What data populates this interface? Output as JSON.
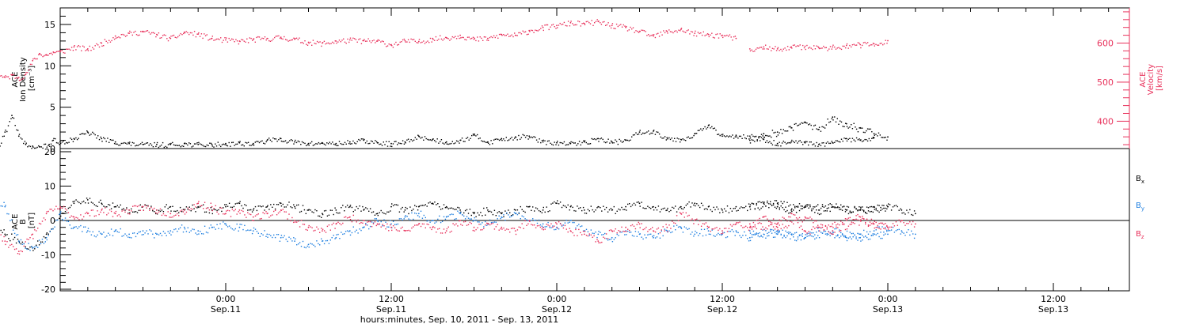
{
  "chart_data": [
    {
      "type": "scatter",
      "panel": "top",
      "ylabel_lines": [
        "ACE",
        "Ion Density",
        "[cm⁻³]"
      ],
      "y2label_lines": [
        "ACE",
        "Velocity",
        "[km/s]"
      ],
      "ylim": [
        0,
        17
      ],
      "yticks": [
        "0",
        "5",
        "10",
        "15"
      ],
      "y2lim": [
        330,
        690
      ],
      "y2ticks": [
        "400",
        "500",
        "600"
      ],
      "xlim_hours": [
        -27,
        51
      ],
      "colors": {
        "density": "#000000",
        "velocity": "#e8315b"
      },
      "series": [
        {
          "name": "",
          "axis": "left",
          "color_key": "density",
          "x": [
            -27,
            -26.5,
            -26,
            -25.5,
            -25,
            -24.7,
            -24.5,
            -24,
            -23.5,
            -23,
            -22.5,
            -22,
            -21.5,
            -21,
            -20.5,
            -20,
            -19.5,
            -19,
            -18.5,
            -18,
            -17.5,
            -17,
            -16.5,
            -16,
            -15.5,
            -15,
            -14.5,
            -14,
            -13.5,
            -12.8,
            -12.5,
            -12,
            -11,
            -10,
            -9,
            -8,
            -7,
            -6,
            -5,
            -4,
            -3,
            -2,
            -1,
            0,
            1,
            2,
            3,
            4,
            5,
            6,
            7,
            8,
            9,
            10,
            11,
            12,
            13,
            14,
            15,
            16,
            17,
            18,
            19,
            20,
            21,
            22,
            23,
            24,
            25,
            26,
            27,
            28,
            29,
            30,
            31,
            32,
            33,
            34,
            35,
            36,
            37,
            38,
            39,
            40,
            41,
            42,
            43,
            44,
            45,
            46,
            47
          ],
          "y": [
            0.5,
            0.5,
            0.4,
            0.5,
            1.5,
            10.5,
            15.5,
            3.5,
            2.0,
            2.3,
            2.6,
            2.4,
            2.0,
            3.5,
            5.0,
            5.5,
            6.5,
            7.2,
            6.0,
            4.5,
            3.0,
            1.5,
            0.2,
            2.0,
            4.0,
            1.5,
            0.5,
            0.3,
            0.2,
            0.5,
            1.0,
            0.8,
            1.2,
            2.0,
            1.2,
            0.8,
            0.6,
            0.5,
            0.5,
            0.5,
            0.6,
            0.5,
            0.5,
            0.6,
            0.7,
            0.6,
            1.0,
            1.2,
            0.8,
            0.6,
            0.7,
            0.6,
            0.8,
            1.0,
            0.7,
            0.6,
            0.8,
            1.5,
            1.1,
            0.8,
            1.0,
            1.6,
            0.8,
            1.2,
            1.4,
            1.5,
            0.8,
            0.7,
            0.6,
            0.8,
            1.2,
            0.8,
            1.0,
            2.0,
            2.1,
            1.3,
            1.1,
            1.8,
            2.8,
            1.5,
            1.6,
            1.5,
            1.1,
            0.6,
            0.8,
            0.7,
            0.5,
            0.7,
            1.2,
            1.0,
            1.3
          ]
        },
        {
          "name": "",
          "axis": "left",
          "color_key": "density",
          "x": [
            38,
            39,
            40,
            41,
            42,
            43,
            44,
            45,
            46,
            47,
            48
          ],
          "y": [
            1.0,
            1.8,
            2.0,
            2.5,
            3.2,
            2.3,
            3.8,
            3.0,
            2.5,
            1.8,
            1.4
          ]
        },
        {
          "name": "",
          "axis": "right",
          "color_key": "velocity",
          "x": [
            -27,
            -26,
            -25.5,
            -25,
            -24.5,
            -24,
            -23.5,
            -23,
            -22.5,
            -22,
            -21.5,
            -21,
            -20.5,
            -20,
            -19.5,
            -19,
            -18.5,
            -18,
            -17.5,
            -17,
            -16.5,
            -16,
            -15.5,
            -15,
            -14.5,
            -14,
            -13.5,
            -13,
            -12.5,
            -12,
            -11,
            -10,
            -9,
            -8,
            -7,
            -6,
            -5,
            -4,
            -3,
            -2,
            -1,
            0,
            1,
            2,
            3,
            4,
            5,
            6,
            7,
            8,
            9,
            10,
            11,
            12,
            13,
            14,
            15,
            16,
            17,
            18,
            19,
            20,
            21,
            22,
            23,
            24,
            25,
            26,
            27,
            28,
            29,
            30,
            31,
            32,
            33,
            34,
            35,
            36,
            37
          ],
          "y": [
            482,
            483,
            488,
            496,
            505,
            502,
            498,
            500,
            502,
            498,
            496,
            505,
            512,
            520,
            530,
            540,
            538,
            530,
            522,
            525,
            518,
            512,
            518,
            512,
            520,
            555,
            573,
            570,
            577,
            578,
            590,
            585,
            600,
            618,
            625,
            630,
            622,
            612,
            628,
            623,
            612,
            608,
            605,
            610,
            612,
            615,
            610,
            602,
            600,
            605,
            608,
            606,
            605,
            596,
            606,
            604,
            612,
            614,
            620,
            610,
            612,
            622,
            620,
            632,
            640,
            645,
            652,
            650,
            655,
            645,
            640,
            630,
            618,
            630,
            635,
            625,
            622,
            620,
            612
          ]
        },
        {
          "name": "",
          "axis": "right",
          "color_key": "velocity",
          "x": [
            38,
            39,
            40,
            41,
            42,
            43,
            44,
            45,
            46,
            47,
            48
          ],
          "y": [
            585,
            590,
            585,
            590,
            592,
            588,
            590,
            594,
            596,
            598,
            606
          ]
        }
      ]
    },
    {
      "type": "scatter",
      "panel": "bottom",
      "ylabel_lines": [
        "ACE",
        "B",
        "[nT]"
      ],
      "ylim": [
        -20,
        20
      ],
      "yticks": [
        "-20",
        "-10",
        "0",
        "10",
        "20"
      ],
      "xlim_hours": [
        -27,
        51
      ],
      "xticks": [
        {
          "hours": 0,
          "time": "0:00",
          "date": "Sep.11"
        },
        {
          "hours": 12,
          "time": "12:00",
          "date": "Sep.11"
        },
        {
          "hours": 24,
          "time": "0:00",
          "date": "Sep.12"
        },
        {
          "hours": 36,
          "time": "12:00",
          "date": "Sep.12"
        },
        {
          "hours": 48,
          "time": "0:00",
          "date": "Sep.13"
        },
        {
          "hours": 60,
          "time": "12:00",
          "date": "Sep.13"
        }
      ],
      "xlabel": "hours:minutes, Sep. 10, 2011 - Sep. 13, 2011",
      "legend": [
        {
          "label": "B",
          "sub": "x",
          "color": "#000000"
        },
        {
          "label": "B",
          "sub": "y",
          "color": "#1f7fe0"
        },
        {
          "label": "B",
          "sub": "z",
          "color": "#e8315b"
        }
      ],
      "series": [
        {
          "name": "Bx",
          "color_key": "bx",
          "x": [
            -27,
            -26,
            -25,
            -24.5,
            -24,
            -23,
            -22,
            -21,
            -20,
            -19,
            -18,
            -17,
            -16,
            -15,
            -14,
            -13,
            -12,
            -11,
            -10,
            -9,
            -8,
            -7,
            -6,
            -5,
            -4,
            -3,
            -2,
            -1,
            0,
            1,
            2,
            3,
            4,
            5,
            6,
            7,
            8,
            9,
            10,
            11,
            12,
            13,
            14,
            15,
            16,
            17,
            18,
            19,
            20,
            21,
            22,
            23,
            24,
            25,
            26,
            27,
            28,
            29,
            30,
            31,
            32,
            33,
            34,
            35,
            36,
            37,
            38,
            39,
            40,
            41,
            42,
            43,
            44,
            45,
            46,
            47,
            48,
            49,
            50
          ],
          "y": [
            4,
            6,
            7,
            8,
            0,
            -3,
            -2,
            -1,
            2,
            3,
            2,
            0,
            -4,
            -6,
            -8,
            -4,
            2,
            5,
            6,
            5,
            4,
            3,
            4,
            3,
            4,
            3,
            4,
            3,
            4,
            5,
            3,
            4,
            5,
            4,
            3,
            2,
            3,
            4,
            3,
            2,
            4,
            3,
            4,
            5,
            4,
            3,
            2,
            3,
            2,
            3,
            4,
            3,
            5,
            4,
            3,
            4,
            3,
            4,
            5,
            4,
            3,
            4,
            5,
            4,
            3,
            4,
            4,
            5,
            4,
            3,
            4,
            3,
            4,
            3,
            3,
            4,
            4,
            3,
            2
          ]
        },
        {
          "name": "By",
          "color_key": "by",
          "x": [
            -27,
            -26,
            -25,
            -24.5,
            -24,
            -23,
            -22,
            -21,
            -20,
            -19,
            -18,
            -17,
            -16,
            -15,
            -14,
            -13,
            -12,
            -11,
            -10,
            -9,
            -8,
            -7,
            -6,
            -5,
            -4,
            -3,
            -2,
            -1,
            0,
            1,
            2,
            3,
            4,
            5,
            6,
            7,
            8,
            9,
            10,
            11,
            12,
            13,
            14,
            15,
            16,
            17,
            18,
            19,
            20,
            21,
            22,
            23,
            24,
            25,
            26,
            27,
            28,
            29,
            30,
            31,
            32,
            33,
            34,
            35,
            36,
            37,
            38,
            39,
            40,
            41,
            42,
            43,
            44,
            45,
            46,
            47,
            48,
            49,
            50
          ],
          "y": [
            2,
            4,
            6,
            10,
            2,
            -16,
            -12,
            -10,
            -9,
            -5,
            3,
            8,
            4,
            -6,
            -8,
            -5,
            2,
            -2,
            -3,
            -4,
            -3,
            -4,
            -3,
            -4,
            -3,
            -2,
            -3,
            -2,
            -1,
            -2,
            -3,
            -4,
            -5,
            -6,
            -7,
            -6,
            -5,
            -3,
            -2,
            0,
            -1,
            1,
            2,
            0,
            1,
            2,
            0,
            -1,
            1,
            2,
            0,
            -1,
            -2,
            0,
            -3,
            -4,
            -5,
            -3,
            -4,
            -5,
            -3,
            -2,
            -4,
            -3,
            -4,
            -3,
            -5,
            -4,
            -3,
            -4,
            -5,
            -3,
            -4,
            -5,
            -4,
            -3,
            -2,
            -3,
            -4
          ]
        },
        {
          "name": "Bz",
          "color_key": "bz",
          "x": [
            -27,
            -26,
            -25,
            -24.5,
            -24,
            -23,
            -22,
            -21,
            -20,
            -19,
            -18,
            -17,
            -16,
            -15,
            -14,
            -13,
            -12,
            -11,
            -10,
            -9,
            -8,
            -7,
            -6,
            -5,
            -4,
            -3,
            -2,
            -1,
            0,
            1,
            2,
            3,
            4,
            5,
            6,
            7,
            8,
            9,
            10,
            11,
            12,
            13,
            14,
            15,
            16,
            17,
            18,
            19,
            20,
            21,
            22,
            23,
            24,
            25,
            26,
            27,
            28,
            29,
            30,
            31,
            32,
            33,
            34,
            35,
            36,
            37,
            38,
            39,
            40,
            41,
            42,
            43,
            44,
            45,
            46,
            47,
            48,
            49,
            50
          ],
          "y": [
            13,
            14,
            15,
            17,
            4,
            5,
            2,
            -2,
            -1,
            3,
            5,
            -1,
            -6,
            -9,
            -4,
            2,
            4,
            1,
            2,
            3,
            2,
            3,
            4,
            3,
            2,
            3,
            5,
            4,
            2,
            3,
            1,
            2,
            3,
            0,
            -2,
            -3,
            -1,
            1,
            0,
            -1,
            -2,
            -3,
            -1,
            -2,
            -3,
            0,
            -2,
            -1,
            -2,
            -3,
            0,
            -2,
            -1,
            -3,
            -4,
            -6,
            -3,
            -2,
            -1,
            -3,
            -2,
            2,
            0,
            -2,
            -3,
            -1,
            -2,
            1,
            -1,
            2,
            -3,
            -2,
            -1,
            0,
            1,
            -1,
            -2,
            0,
            -1
          ]
        }
      ],
      "late_segment": {
        "x": [
          38,
          40,
          42,
          44,
          46,
          48
        ],
        "bx": [
          4,
          5,
          4,
          4,
          3,
          4
        ],
        "by": [
          -3,
          -4,
          -5,
          -3,
          -5,
          -4
        ],
        "bz": [
          -1,
          -2,
          1,
          -3,
          0,
          -2
        ]
      },
      "series_colors": {
        "bx": "#000000",
        "by": "#1f7fe0",
        "bz": "#e8315b"
      }
    }
  ]
}
